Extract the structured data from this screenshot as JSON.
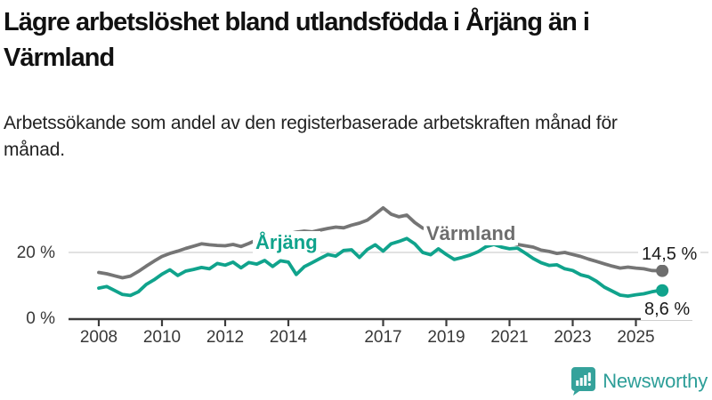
{
  "header": {
    "title": "Lägre arbetslöshet bland utlandsfödda i Årjäng än i Värmland",
    "subtitle": "Arbetssökande som andel av den registerbaserade arbetskraften månad för månad."
  },
  "chart_data": {
    "type": "line",
    "title": "Lägre arbetslöshet bland utlandsfödda i Årjäng än i Värmland",
    "subtitle": "Arbetssökande som andel av den registerbaserade arbetskraften månad för månad.",
    "unit": "%",
    "xlim": [
      2008,
      2025.75
    ],
    "ylim": [
      0,
      38
    ],
    "grid": "single horizontal gridline at 20 %",
    "legend_position": "inline labels on lines, value labels at line ends",
    "x": [
      2008,
      2008.25,
      2008.5,
      2008.75,
      2009,
      2009.25,
      2009.5,
      2009.75,
      2010,
      2010.25,
      2010.5,
      2010.75,
      2011,
      2011.25,
      2011.5,
      2011.75,
      2012,
      2012.25,
      2012.5,
      2012.75,
      2013,
      2013.25,
      2013.5,
      2013.75,
      2014,
      2014.25,
      2014.5,
      2014.75,
      2015,
      2015.25,
      2015.5,
      2015.75,
      2016,
      2016.25,
      2016.5,
      2016.75,
      2017,
      2017.25,
      2017.5,
      2017.75,
      2018,
      2018.25,
      2018.5,
      2018.75,
      2019,
      2019.25,
      2019.5,
      2019.75,
      2020,
      2020.25,
      2020.5,
      2020.75,
      2021,
      2021.25,
      2021.5,
      2021.75,
      2022,
      2022.25,
      2022.5,
      2022.75,
      2023,
      2023.25,
      2023.5,
      2023.75,
      2024,
      2024.25,
      2024.5,
      2024.75,
      2025,
      2025.25,
      2025.5,
      2025.75
    ],
    "series": [
      {
        "name": "Värmland",
        "color": "#757575",
        "end_value_label": "14,5 %",
        "end_value": 14.5,
        "values": [
          14.0,
          13.6,
          13.0,
          12.4,
          12.9,
          14.3,
          15.9,
          17.4,
          18.8,
          19.7,
          20.4,
          21.2,
          21.9,
          22.6,
          22.3,
          22.1,
          22.0,
          22.4,
          21.8,
          22.7,
          23.8,
          23.3,
          23.9,
          24.5,
          25.6,
          26.1,
          26.4,
          26.2,
          26.7,
          27.2,
          27.6,
          27.4,
          28.2,
          28.8,
          29.7,
          31.5,
          33.4,
          31.5,
          30.7,
          31.2,
          29.0,
          27.3,
          26.6,
          26.1,
          25.7,
          25.3,
          25.0,
          24.7,
          24.4,
          24.7,
          24.3,
          23.7,
          23.0,
          22.4,
          22.0,
          21.6,
          20.7,
          20.3,
          19.7,
          20.0,
          19.4,
          18.8,
          18.0,
          17.3,
          16.6,
          15.9,
          15.3,
          15.6,
          15.3,
          15.1,
          14.6,
          14.5
        ]
      },
      {
        "name": "Årjäng",
        "color": "#10a38c",
        "end_value_label": "8,6 %",
        "end_value": 8.6,
        "values": [
          9.3,
          9.8,
          8.6,
          7.4,
          7.1,
          8.2,
          10.4,
          11.8,
          13.5,
          14.8,
          13.1,
          14.4,
          14.9,
          15.5,
          15.1,
          16.7,
          16.2,
          17.1,
          15.4,
          17.0,
          16.5,
          17.6,
          15.8,
          17.5,
          17.1,
          13.4,
          15.7,
          16.9,
          18.2,
          19.4,
          18.9,
          20.6,
          20.8,
          18.5,
          20.9,
          22.3,
          20.4,
          22.6,
          23.3,
          24.2,
          22.6,
          20.0,
          19.3,
          21.1,
          19.4,
          17.9,
          18.5,
          19.2,
          20.2,
          21.7,
          22.4,
          21.6,
          21.1,
          21.3,
          19.8,
          18.2,
          16.9,
          16.1,
          16.3,
          15.1,
          14.6,
          13.3,
          12.7,
          11.4,
          9.6,
          8.4,
          7.2,
          6.9,
          7.3,
          7.6,
          8.2,
          8.6
        ]
      }
    ],
    "yticks": [
      {
        "value": 0,
        "label": "0 %"
      },
      {
        "value": 20,
        "label": "20 %"
      }
    ],
    "xticks": [
      {
        "year": 2008,
        "label": "2008"
      },
      {
        "year": 2010,
        "label": "2010"
      },
      {
        "year": 2012,
        "label": "2012"
      },
      {
        "year": 2014,
        "label": "2014"
      },
      {
        "year": 2017,
        "label": "2017"
      },
      {
        "year": 2019,
        "label": "2019"
      },
      {
        "year": 2021,
        "label": "2021"
      },
      {
        "year": 2023,
        "label": "2023"
      },
      {
        "year": 2025,
        "label": "2025"
      }
    ]
  },
  "colors": {
    "varmland_line": "#757575",
    "arjang_line": "#10a38c",
    "varmland_label": "#6d6d6d",
    "arjang_label": "#10a38c",
    "gridline": "#d9d9d9",
    "axis": "#3c3c3c",
    "logo_teal": "#2d9e98"
  },
  "branding": {
    "logo_text": "Newsworthy",
    "logo_icon": "speech-bubble-bar-chart-icon"
  }
}
